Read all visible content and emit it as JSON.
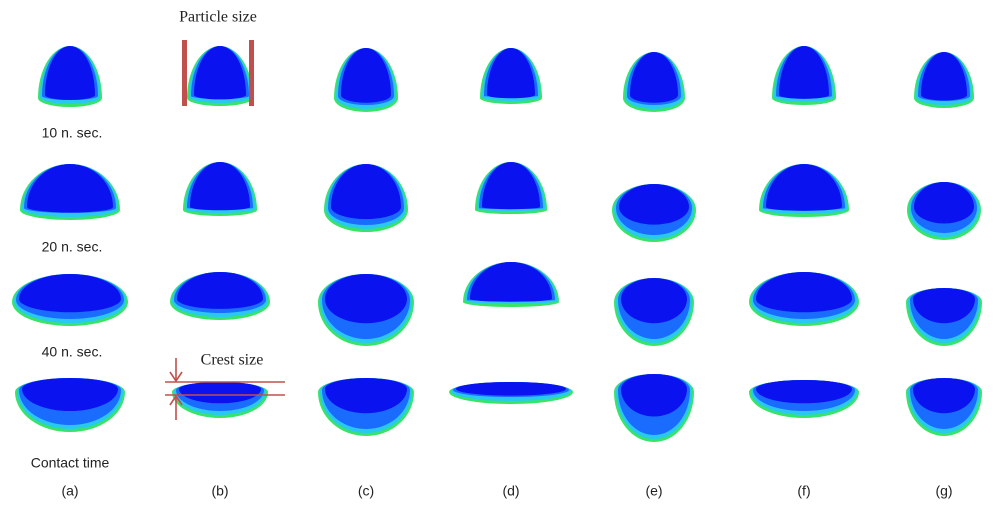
{
  "figure": {
    "annotations": {
      "particle_size": "Particle size",
      "crest_size": "Crest size"
    },
    "times": [
      "10 n. sec.",
      "20 n. sec.",
      "40 n. sec.",
      "Contact time"
    ],
    "panels": [
      "(a)",
      "(b)",
      "(c)",
      "(d)",
      "(e)",
      "(f)",
      "(g)"
    ]
  }
}
